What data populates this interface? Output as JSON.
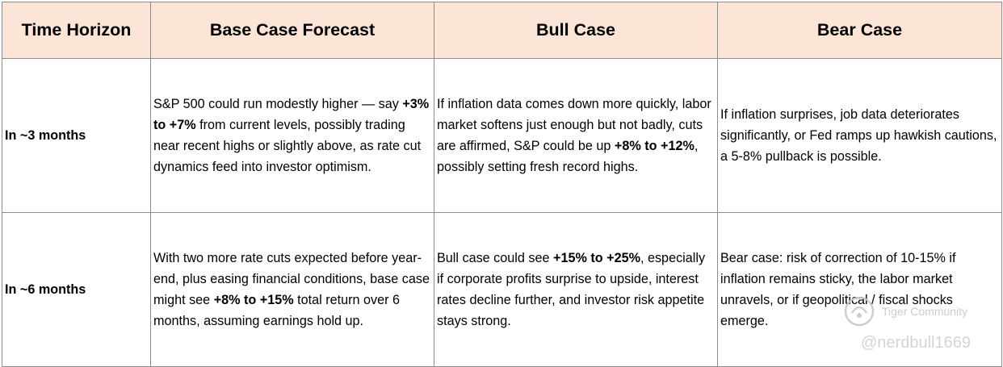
{
  "headers": [
    "Time Horizon",
    "Base Case Forecast",
    "Bull Case",
    "Bear Case"
  ],
  "rows": [
    {
      "label": "In ~3 months",
      "base": {
        "pre": "S&P 500 could run modestly higher — say ",
        "bold": "+3% to +7%",
        "post": " from current levels, possibly trading near recent highs or slightly above, as rate cut dynamics feed into investor optimism."
      },
      "bull": {
        "pre": "If inflation data comes down more quickly, labor market softens just enough but not badly, cuts are affirmed, S&P could be up ",
        "bold": "+8% to +12%",
        "post": ", possibly setting fresh record highs."
      },
      "bear": {
        "text": "If inflation surprises, job data deteriorates significantly, or Fed ramps up hawkish cautions, a 5-8% pullback is possible."
      }
    },
    {
      "label": "In ~6 months",
      "base": {
        "pre": "With two more rate cuts expected before year-end, plus easing financial conditions, base case might see ",
        "bold": "+8% to +15%",
        "post": " total return over 6 months, assuming earnings hold up."
      },
      "bull": {
        "pre": "Bull case could see ",
        "bold": "+15% to +25%",
        "post": ", especially if corporate profits surprise to upside, interest rates decline further, and investor risk appetite stays strong."
      },
      "bear": {
        "text": "Bear case: risk of correction of 10-15% if inflation remains sticky, the labor market unravels, or if geopolitical / fiscal shocks emerge."
      }
    }
  ],
  "watermark": {
    "brand": "Tiger Community",
    "user": "@nerdbull1669"
  }
}
